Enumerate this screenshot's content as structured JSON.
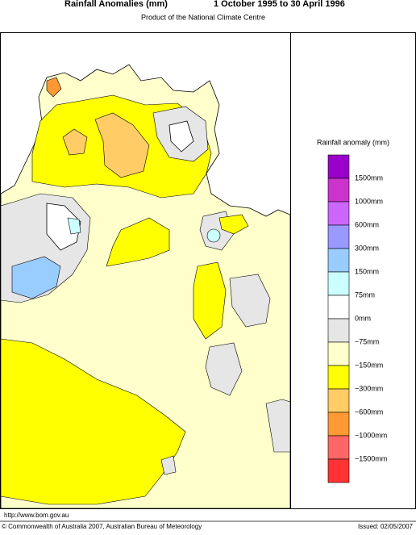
{
  "header": {
    "title": "Rainfall Anomalies (mm)",
    "period": "1 October 1995 to 30 April 1996",
    "subtitle": "Product of the National Climate Centre"
  },
  "legend": {
    "title": "Rainfall anomaly (mm)",
    "colors": [
      "#9900cc",
      "#cc33cc",
      "#cc66ff",
      "#9999ff",
      "#99ccff",
      "#ccffff",
      "#ffffff",
      "#e6e6e6",
      "#ffffcc",
      "#ffff00",
      "#ffcc66",
      "#ff9933",
      "#ff6666",
      "#ff3333"
    ],
    "labels": [
      "1500mm",
      "1000mm",
      "600mm",
      "300mm",
      "150mm",
      "75mm",
      "0mm",
      "−75mm",
      "−150mm",
      "−300mm",
      "−600mm",
      "−1000mm",
      "−1500mm"
    ]
  },
  "footer": {
    "url": "http://www.bom.gov.au",
    "copyright": "© Commonwealth of Australia 2007, Australian Bureau of Meteorology",
    "issued": "Issued: 02/05/2007"
  }
}
